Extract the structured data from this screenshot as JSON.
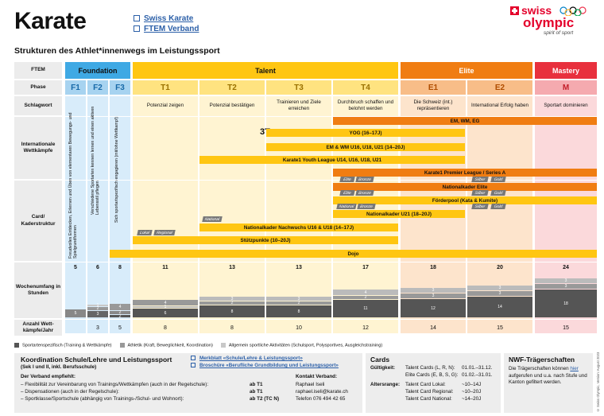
{
  "header": {
    "title": "Karate",
    "links": [
      "Swiss Karate",
      "FTEM Verband"
    ],
    "logo": {
      "brand_a": "swiss",
      "brand_b": "olympic",
      "tagline": "spirit of sport"
    }
  },
  "subtitle": "Strukturen des Athlet*innenwegs im Leistungssport",
  "row_labels": {
    "ftem": "FTEM",
    "phase": "Phase",
    "schlagwort": "Schlagwort",
    "wettkaempfe": "Internationale Wettkämpfe",
    "card": "Card/ Kaderstruktur",
    "wochen": "Wochenumfang in Stunden",
    "anzahl": "Anzahl Wett-kämpfe/Jahr"
  },
  "ftem": {
    "foundation": "Foundation",
    "talent": "Talent",
    "elite": "Elite",
    "mastery": "Mastery"
  },
  "phases": [
    "F1",
    "F2",
    "F3",
    "T1",
    "T2",
    "T3",
    "T4",
    "E1",
    "E2",
    "M"
  ],
  "schlagworte": [
    "Potenzial zeigen",
    "Potenzial bestätigen",
    "Trainieren und Ziele erreichen",
    "Durchbruch schaffen und belohnt werden",
    "Die Schweiz (int.) repräsentieren",
    "International Erfolg haben",
    "Sportart dominieren"
  ],
  "foundation_texts": [
    "Freudvolles Entdecken, Erlernen und Üben von elementaren Bewegungs- und Spielgrundformen",
    "Verschiedene Sportarten kennen lernen und einen aktiven Lebensstil pflegen",
    "Sich sportartspezifisch engagieren (mit/ohne Wettkampf)"
  ],
  "bars": {
    "em_wm_eg": "EM, WM, EG",
    "yog": "YOG (16–17J)",
    "em_wm_u": "EM & WM U16, U18, U21 (14–20J)",
    "youth_league": "Karate1 Youth League U14, U16, U18, U21",
    "premier": "Karate1 Premier League / Series A",
    "nk_elite": "Nationalkader Elite",
    "foerderpool": "Förderpool (Kata & Kumite)",
    "nk_u21": "Nationalkader U21 (18–20J)",
    "nk_nachwuchs": "Nationalkader Nachwuchs U16 & U18 (14–17J)",
    "stuetzpunkte": "Stützpunkte (10–20J)",
    "dojo": "Dojo"
  },
  "tags": {
    "elite": "Elite",
    "bronze": "Bronze",
    "silber": "Silber",
    "gold": "Gold",
    "national": "National",
    "regional": "Regional",
    "lokal": "Lokal"
  },
  "hours": [
    5,
    6,
    8,
    11,
    13,
    13,
    17,
    18,
    20,
    24
  ],
  "segments": {
    "F1": [
      "5"
    ],
    "F2": [
      "1",
      "2",
      "3"
    ],
    "F3": [
      "4",
      "2",
      "2"
    ],
    "T1": [
      "4",
      "1",
      "6"
    ],
    "T2": [
      "3",
      "2",
      "8"
    ],
    "T3": [
      "3",
      "2",
      "8"
    ],
    "T4": [
      "4",
      "2",
      "11"
    ],
    "E1": [
      "3",
      "3",
      "12"
    ],
    "E2": [
      "3",
      "3",
      "14"
    ],
    "M": [
      "3",
      "3",
      "18"
    ]
  },
  "competitions": [
    "",
    "3",
    "5",
    "8",
    "8",
    "10",
    "12",
    "14",
    "15",
    "15"
  ],
  "legend": [
    "Sportartenspezifisch (Training & Wettkämpfe)",
    "Athletik (Kraft, Beweglichkeit, Koordination)",
    "Allgemein sportliche Aktivitäten (Schulsport, Polysportives, Ausgleichstraining)"
  ],
  "school": {
    "title": "Koordination Schule/Lehre und Leistungssport",
    "sub": "(Sek I und II, inkl. Berufsschule)",
    "links": [
      "Merkblatt «Schule/Lehre & Leistungssport»",
      "Broschüre «Berufliche Grundbildung und Leistungssport»"
    ],
    "empfiehlt": "Der Verband empfiehlt:",
    "items": [
      [
        "– Flexibilität zur Vereinbarung von Trainings/Wettkämpfen (auch in der Regelschule):",
        "ab T1"
      ],
      [
        "– Dispensationen (auch in der Regelschule):",
        "ab T1"
      ],
      [
        "– Sportklasse/Sportschule (abhängig von Trainings-/Schul- und Wohnort):",
        "ab T2 (TC N)"
      ]
    ],
    "kontakt_title": "Kontakt Verband:",
    "kontakt": [
      "Raphael Iseli",
      "raphael.iseli@karate.ch",
      "Telefon 076 494 42 65"
    ]
  },
  "cards": {
    "title": "Cards",
    "gueltig_label": "Gültigkeit:",
    "gueltig": [
      [
        "Talent Cards (L, R, N):",
        "01.01.–31.12."
      ],
      [
        "Elite Cards (E, B, S, G):",
        "01.02.–31.01."
      ]
    ],
    "alter_label": "Altersrange:",
    "alter": [
      [
        "Talent Card Lokal:",
        "~10–14J"
      ],
      [
        "Talent Card Regional:",
        "~10–20J"
      ],
      [
        "Talent Card National:",
        "~14–20J"
      ]
    ]
  },
  "nwf": {
    "title": "NWF-Trägerschaften",
    "text_a": "Die Trägerschaften können",
    "link": "hier",
    "text_b": "aufgerufen und u.a. nach Stufe und Kanton gefiltert werden."
  },
  "credit": "© Swiss Olympic, Version: August 2023"
}
